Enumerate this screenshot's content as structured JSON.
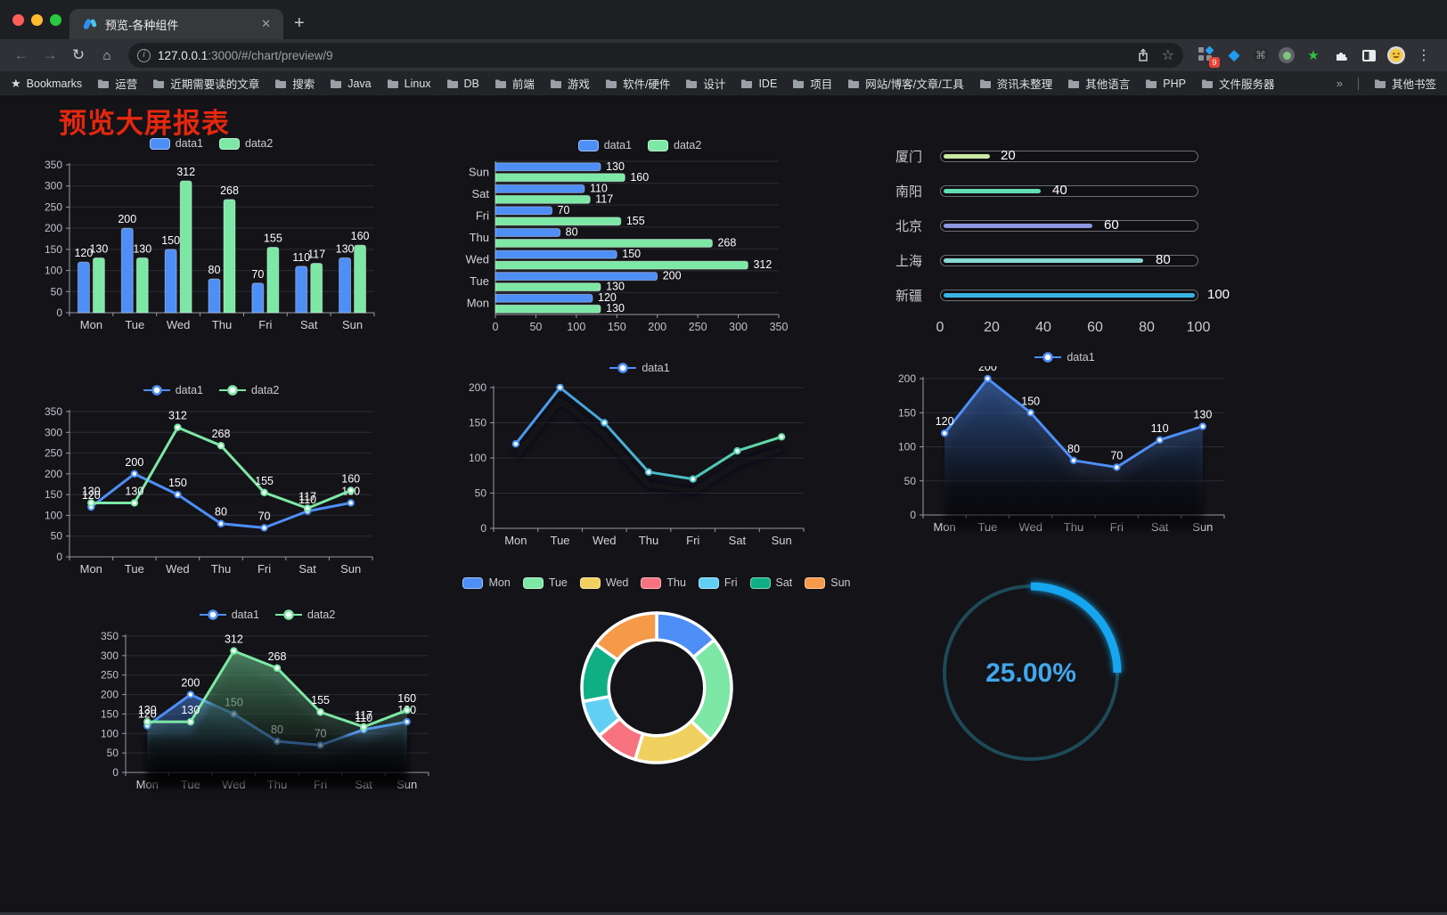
{
  "browser": {
    "tab": {
      "title": "预览-各种组件",
      "close": "✕",
      "new_tab": "+"
    },
    "nav": {
      "back": "←",
      "forward": "→",
      "reload": "↻",
      "home": "⌂"
    },
    "url": {
      "host": "127.0.0.1",
      "rest": ":3000/#/chart/preview/9",
      "info": "i"
    },
    "extension_badge": "9",
    "bookmarks_label": "Bookmarks",
    "bookmarks": [
      "运营",
      "近期需要读的文章",
      "搜索",
      "Java",
      "Linux",
      "DB",
      "前端",
      "游戏",
      "软件/硬件",
      "设计",
      "IDE",
      "项目",
      "网站/博客/文章/工具",
      "资讯未整理",
      "其他语言",
      "PHP",
      "文件服务器"
    ],
    "overflow_chevron": "»",
    "other_bookmarks": "其他书签"
  },
  "page": {
    "title": "预览大屏报表"
  },
  "colors": {
    "blue": "#4e8ef7",
    "green": "#7de8a5",
    "grid": "#2c2c34",
    "axis": "#9a9aa2",
    "tick_label": "#c2c2ca",
    "cat_label": "#d2d2d8",
    "value_label": "#ffffff"
  },
  "chart_data": [
    {
      "id": "bar-vertical",
      "type": "bar",
      "categories": [
        "Mon",
        "Tue",
        "Wed",
        "Thu",
        "Fri",
        "Sat",
        "Sun"
      ],
      "series": [
        {
          "name": "data1",
          "color": "#4e8ef7",
          "values": [
            120,
            200,
            150,
            80,
            70,
            110,
            130
          ]
        },
        {
          "name": "data2",
          "color": "#7de8a5",
          "values": [
            130,
            130,
            312,
            268,
            155,
            117,
            160
          ]
        }
      ],
      "ylim": [
        0,
        350
      ],
      "ytick": 50,
      "grid": true,
      "legend_position": "top"
    },
    {
      "id": "bar-horizontal",
      "type": "bar",
      "orientation": "horizontal",
      "categories_top_to_bottom": [
        "Sun",
        "Sat",
        "Fri",
        "Thu",
        "Wed",
        "Tue",
        "Mon"
      ],
      "series": [
        {
          "name": "data1",
          "color": "#4e8ef7",
          "values": [
            130,
            110,
            70,
            80,
            150,
            200,
            120
          ]
        },
        {
          "name": "data2",
          "color": "#7de8a5",
          "values": [
            160,
            117,
            155,
            268,
            312,
            130,
            130
          ]
        }
      ],
      "xlim": [
        0,
        350
      ],
      "xtick": 50,
      "legend_position": "top"
    },
    {
      "id": "progress-bars",
      "type": "bar",
      "subtype": "progress",
      "items": [
        {
          "label": "厦门",
          "value": 20,
          "color": "#c9e8a3"
        },
        {
          "label": "南阳",
          "value": 40,
          "color": "#63ddb2"
        },
        {
          "label": "北京",
          "value": 60,
          "color": "#8d96e0"
        },
        {
          "label": "上海",
          "value": 80,
          "color": "#88d8d2"
        },
        {
          "label": "新疆",
          "value": 100,
          "color": "#39b2e6"
        }
      ],
      "axis_ticks": [
        0,
        20,
        40,
        60,
        80,
        100
      ],
      "max": 100
    },
    {
      "id": "line-dual",
      "type": "line",
      "categories": [
        "Mon",
        "Tue",
        "Wed",
        "Thu",
        "Fri",
        "Sat",
        "Sun"
      ],
      "series": [
        {
          "name": "data1",
          "color": "#4e8ef7",
          "values": [
            120,
            200,
            150,
            80,
            70,
            110,
            130
          ],
          "labels": true
        },
        {
          "name": "data2",
          "color": "#7de8a5",
          "values": [
            130,
            130,
            312,
            268,
            155,
            117,
            160
          ],
          "labels": true
        }
      ],
      "ylim": [
        0,
        350
      ],
      "ytick": 50,
      "legend_position": "top"
    },
    {
      "id": "line-gradient",
      "type": "line",
      "categories": [
        "Mon",
        "Tue",
        "Wed",
        "Thu",
        "Fri",
        "Sat",
        "Sun"
      ],
      "series": [
        {
          "name": "data1",
          "gradient": [
            "#4e8ef7",
            "#4aa9dd",
            "#4cc4bb",
            "#6fe69a"
          ],
          "values": [
            120,
            200,
            150,
            80,
            70,
            110,
            130
          ],
          "labels": false
        }
      ],
      "ylim": [
        0,
        200
      ],
      "ytick": 50,
      "shadow": true,
      "legend_position": "top"
    },
    {
      "id": "line-area",
      "type": "line",
      "categories": [
        "Mon",
        "Tue",
        "Wed",
        "Thu",
        "Fri",
        "Sat",
        "Sun"
      ],
      "series": [
        {
          "name": "data1",
          "color": "#4e8ef7",
          "values": [
            120,
            200,
            150,
            80,
            70,
            110,
            130
          ],
          "labels": true,
          "area": true
        }
      ],
      "ylim": [
        0,
        200
      ],
      "ytick": 50,
      "legend_position": "top"
    },
    {
      "id": "line-dual-area",
      "type": "line",
      "categories": [
        "Mon",
        "Tue",
        "Wed",
        "Thu",
        "Fri",
        "Sat",
        "Sun"
      ],
      "series": [
        {
          "name": "data1",
          "color": "#4e8ef7",
          "values": [
            120,
            200,
            150,
            80,
            70,
            110,
            130
          ],
          "labels": true,
          "area": true
        },
        {
          "name": "data2",
          "color": "#7de8a5",
          "values": [
            130,
            130,
            312,
            268,
            155,
            117,
            160
          ],
          "labels": true,
          "area": true
        }
      ],
      "ylim": [
        0,
        350
      ],
      "ytick": 50,
      "legend_position": "top"
    },
    {
      "id": "donut",
      "type": "pie",
      "inner_radius_ratio": 0.64,
      "labels": [
        "Mon",
        "Tue",
        "Wed",
        "Thu",
        "Fri",
        "Sat",
        "Sun"
      ],
      "values": [
        120,
        200,
        150,
        80,
        70,
        110,
        130
      ],
      "colors": [
        "#4e8ef7",
        "#7de8a5",
        "#f0d160",
        "#f7737f",
        "#62cff2",
        "#10ae84",
        "#f59a49"
      ],
      "legend_position": "top"
    },
    {
      "id": "gauge",
      "type": "gauge",
      "value_percent": 25,
      "text": "25.00%",
      "arc_color": "#18a6f0",
      "track_color": "#1d4a56",
      "text_color": "#41a7ec"
    }
  ]
}
